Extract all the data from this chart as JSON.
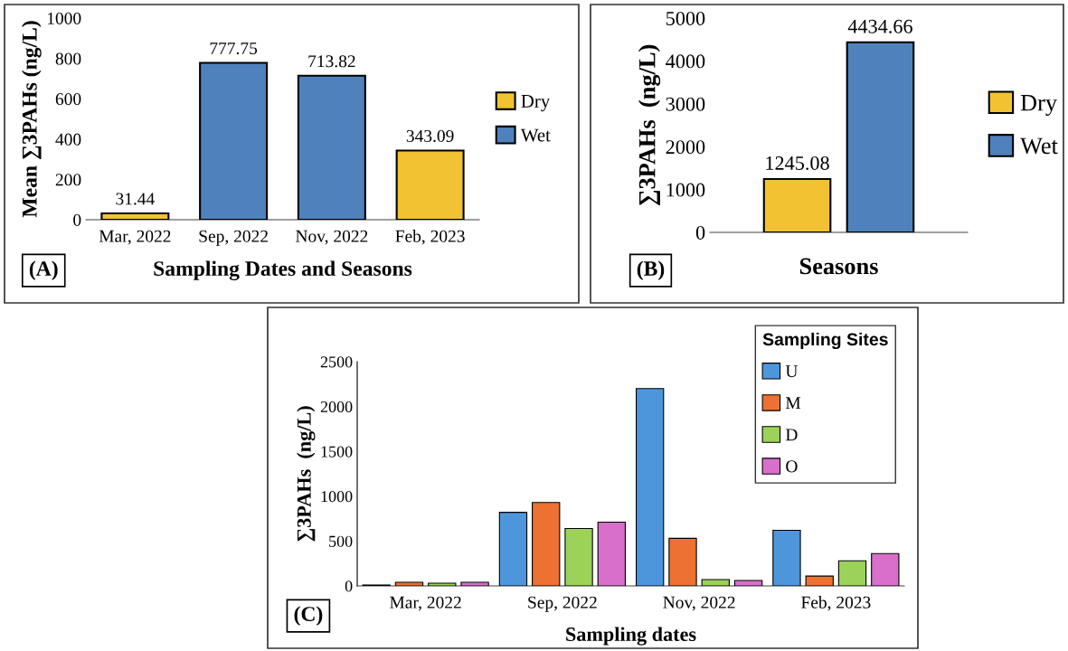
{
  "chart_data": [
    {
      "type": "bar",
      "stacked": true,
      "ylabel": "Mean ∑3PAHs (ng/L)",
      "xlabel": "Sampling Dates and Seasons",
      "categories": [
        "Mar, 2022",
        "Sep, 2022",
        "Nov, 2022",
        "Feb, 2023"
      ],
      "series": [
        {
          "name": "Dry",
          "color": "#f2c232",
          "values": [
            31.44,
            null,
            null,
            343.09
          ]
        },
        {
          "name": "Wet",
          "color": "#4f81bd",
          "values": [
            null,
            777.75,
            713.82,
            null
          ]
        }
      ],
      "ylim": [
        0,
        1000
      ],
      "yticks": [
        0,
        200,
        400,
        600,
        800,
        1000
      ],
      "data_labels": true,
      "legend": "right",
      "grid": false,
      "annotations": [
        "(A)"
      ]
    },
    {
      "type": "bar",
      "stacked": true,
      "ylabel": "∑3PAHs  (ng/L)",
      "xlabel": "Seasons",
      "categories": [
        null,
        null
      ],
      "series": [
        {
          "name": "Dry",
          "color": "#f2c232",
          "values": [
            1245.08,
            null
          ]
        },
        {
          "name": "Wet",
          "color": "#4f81bd",
          "values": [
            null,
            4434.66
          ]
        }
      ],
      "ylim": [
        0,
        5000
      ],
      "yticks": [
        0,
        1000,
        2000,
        3000,
        4000,
        5000
      ],
      "data_labels": true,
      "legend": "right",
      "grid": false,
      "annotations": [
        "(B)"
      ]
    },
    {
      "type": "bar",
      "ylabel": "∑3PAHs  (ng/L)",
      "xlabel": "Sampling dates",
      "legend_title": "Sampling Sites",
      "categories": [
        "Mar, 2022",
        "Sep, 2022",
        "Nov, 2022",
        "Feb, 2023"
      ],
      "series": [
        {
          "name": "U",
          "color": "#4d96dc",
          "values": [
            10,
            820,
            2200,
            620
          ]
        },
        {
          "name": "M",
          "color": "#ec7132",
          "values": [
            40,
            930,
            530,
            110
          ]
        },
        {
          "name": "D",
          "color": "#9cd25a",
          "values": [
            30,
            640,
            70,
            280
          ]
        },
        {
          "name": "O",
          "color": "#d86fcb",
          "values": [
            40,
            710,
            60,
            360
          ]
        }
      ],
      "ylim": [
        0,
        2500
      ],
      "yticks": [
        0,
        500,
        1000,
        1500,
        2000,
        2500
      ],
      "legend": "top right",
      "grid": false,
      "annotations": [
        "(C)"
      ]
    }
  ]
}
